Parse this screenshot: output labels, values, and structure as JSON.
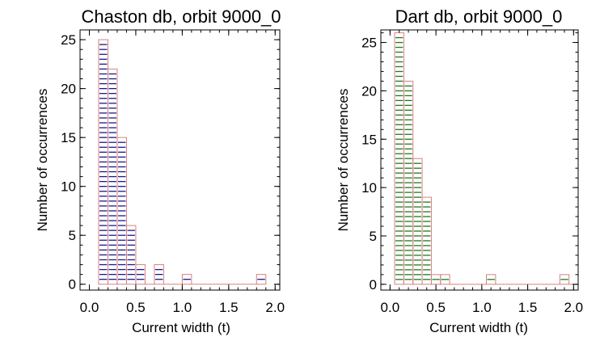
{
  "chart_data": [
    {
      "type": "bar",
      "title": "Chaston db, orbit 9000_0",
      "xlabel": "Current width (t)",
      "ylabel": "Number of occurrences",
      "xlim": [
        -0.1,
        2.05
      ],
      "ylim": [
        -0.6,
        26
      ],
      "x_ticks": [
        0.0,
        0.5,
        1.0,
        1.5,
        2.0
      ],
      "x_tick_labels": [
        "0.0",
        "0.5",
        "1.0",
        "1.5",
        "2.0"
      ],
      "y_ticks": [
        0,
        5,
        10,
        15,
        20,
        25
      ],
      "y_tick_labels": [
        "0",
        "5",
        "10",
        "15",
        "20",
        "25"
      ],
      "bin_width": 0.1,
      "bin_starts": [
        0.1,
        0.2,
        0.3,
        0.4,
        0.5,
        0.6,
        0.7,
        0.8,
        0.9,
        1.0,
        1.1,
        1.2,
        1.3,
        1.4,
        1.5,
        1.6,
        1.7,
        1.8
      ],
      "values": [
        25,
        22,
        15,
        6,
        2,
        0,
        2,
        0,
        0,
        1,
        0,
        0,
        0,
        0,
        0,
        0,
        0,
        1
      ],
      "hatch_color": "#1a1a8c",
      "outline_color": "#d98080"
    },
    {
      "type": "bar",
      "title": "Dart db, orbit 9000_0",
      "xlabel": "Current width (t)",
      "ylabel": "Number of occurrences",
      "xlim": [
        -0.1,
        2.05
      ],
      "ylim": [
        -0.6,
        26.3
      ],
      "x_ticks": [
        0.0,
        0.5,
        1.0,
        1.5,
        2.0
      ],
      "x_tick_labels": [
        "0.0",
        "0.5",
        "1.0",
        "1.5",
        "2.0"
      ],
      "y_ticks": [
        0,
        5,
        10,
        15,
        20,
        25
      ],
      "y_tick_labels": [
        "0",
        "5",
        "10",
        "15",
        "20",
        "25"
      ],
      "bin_width": 0.1,
      "bin_starts": [
        0.05,
        0.15,
        0.25,
        0.35,
        0.45,
        0.55,
        0.65,
        0.75,
        0.85,
        0.95,
        1.05,
        1.15,
        1.25,
        1.35,
        1.45,
        1.55,
        1.65,
        1.75,
        1.85,
        1.95
      ],
      "values": [
        26,
        21,
        13,
        9,
        1,
        1,
        0,
        0,
        0,
        0,
        1,
        0,
        0,
        0,
        0,
        0,
        0,
        0,
        1,
        0
      ],
      "hatch_color": "#1f7a1f",
      "outline_color": "#d98080"
    }
  ]
}
